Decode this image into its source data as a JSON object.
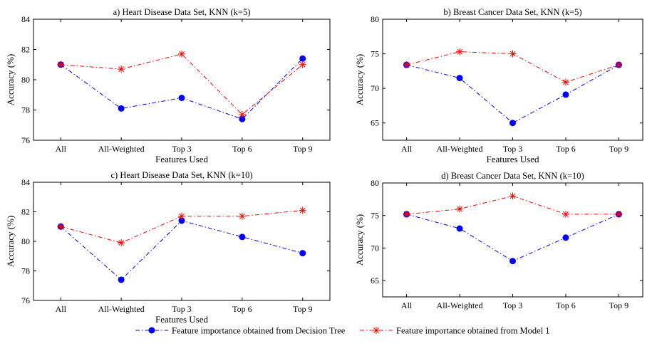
{
  "legend": {
    "items": [
      {
        "label": "Feature importance obtained from Decision Tree",
        "color": "#0000ff",
        "marker": "circle"
      },
      {
        "label": "Feature importance obtained from Model 1",
        "color": "#ff0000",
        "marker": "asterisk"
      }
    ]
  },
  "chart_data": [
    {
      "type": "line",
      "title": "a) Heart Disease Data Set, KNN (k=5)",
      "xlabel": "Features Used",
      "ylabel": "Accuracy (%)",
      "categories": [
        "All",
        "All-Weighted",
        "Top 3",
        "Top 6",
        "Top 9"
      ],
      "ylim": [
        76,
        84
      ],
      "yticks": [
        76,
        78,
        80,
        82,
        84
      ],
      "series": [
        {
          "name": "Feature importance obtained from Decision Tree",
          "color": "#0000ff",
          "marker": "circle",
          "values": [
            81.0,
            78.1,
            78.8,
            77.4,
            81.4
          ]
        },
        {
          "name": "Feature importance obtained from Model 1",
          "color": "#ff0000",
          "marker": "asterisk",
          "values": [
            81.0,
            80.7,
            81.7,
            77.7,
            81.0
          ]
        }
      ]
    },
    {
      "type": "line",
      "title": "b) Breast Cancer Data Set, KNN (k=5)",
      "xlabel": "Features Used",
      "ylabel": "Accuracy (%)",
      "categories": [
        "All",
        "All-Weighted",
        "Top 3",
        "Top 6",
        "Top 9"
      ],
      "ylim": [
        62.5,
        80
      ],
      "yticks": [
        65,
        70,
        75,
        80
      ],
      "series": [
        {
          "name": "Feature importance obtained from Decision Tree",
          "color": "#0000ff",
          "marker": "circle",
          "values": [
            73.4,
            71.5,
            65.0,
            69.1,
            73.4
          ]
        },
        {
          "name": "Feature importance obtained from Model 1",
          "color": "#ff0000",
          "marker": "asterisk",
          "values": [
            73.4,
            75.3,
            75.0,
            70.9,
            73.4
          ]
        }
      ]
    },
    {
      "type": "line",
      "title": "c) Heart Disease Data Set, KNN (k=10)",
      "xlabel": "Features Used",
      "ylabel": "Accuracy (%)",
      "categories": [
        "All",
        "All-Weighted",
        "Top 3",
        "Top 6",
        "Top 9"
      ],
      "ylim": [
        76,
        84
      ],
      "yticks": [
        76,
        78,
        80,
        82,
        84
      ],
      "series": [
        {
          "name": "Feature importance obtained from Decision Tree",
          "color": "#0000ff",
          "marker": "circle",
          "values": [
            81.0,
            77.4,
            81.4,
            80.3,
            79.2
          ]
        },
        {
          "name": "Feature importance obtained from Model 1",
          "color": "#ff0000",
          "marker": "asterisk",
          "values": [
            81.0,
            79.9,
            81.7,
            81.7,
            82.1
          ]
        }
      ]
    },
    {
      "type": "line",
      "title": "d) Breast Cancer Data Set, KNN (k=10)",
      "xlabel": "",
      "ylabel": "Accuracy (%)",
      "categories": [
        "All",
        "All-Weighted",
        "Top 3",
        "Top 6",
        "Top 9"
      ],
      "ylim": [
        62.5,
        80
      ],
      "yticks": [
        65,
        70,
        75,
        80
      ],
      "series": [
        {
          "name": "Feature importance obtained from Decision Tree",
          "color": "#0000ff",
          "marker": "circle",
          "values": [
            75.2,
            73.0,
            68.0,
            71.6,
            75.2
          ]
        },
        {
          "name": "Feature importance obtained from Model 1",
          "color": "#ff0000",
          "marker": "asterisk",
          "values": [
            75.2,
            76.0,
            78.0,
            75.2,
            75.2
          ]
        }
      ]
    }
  ]
}
